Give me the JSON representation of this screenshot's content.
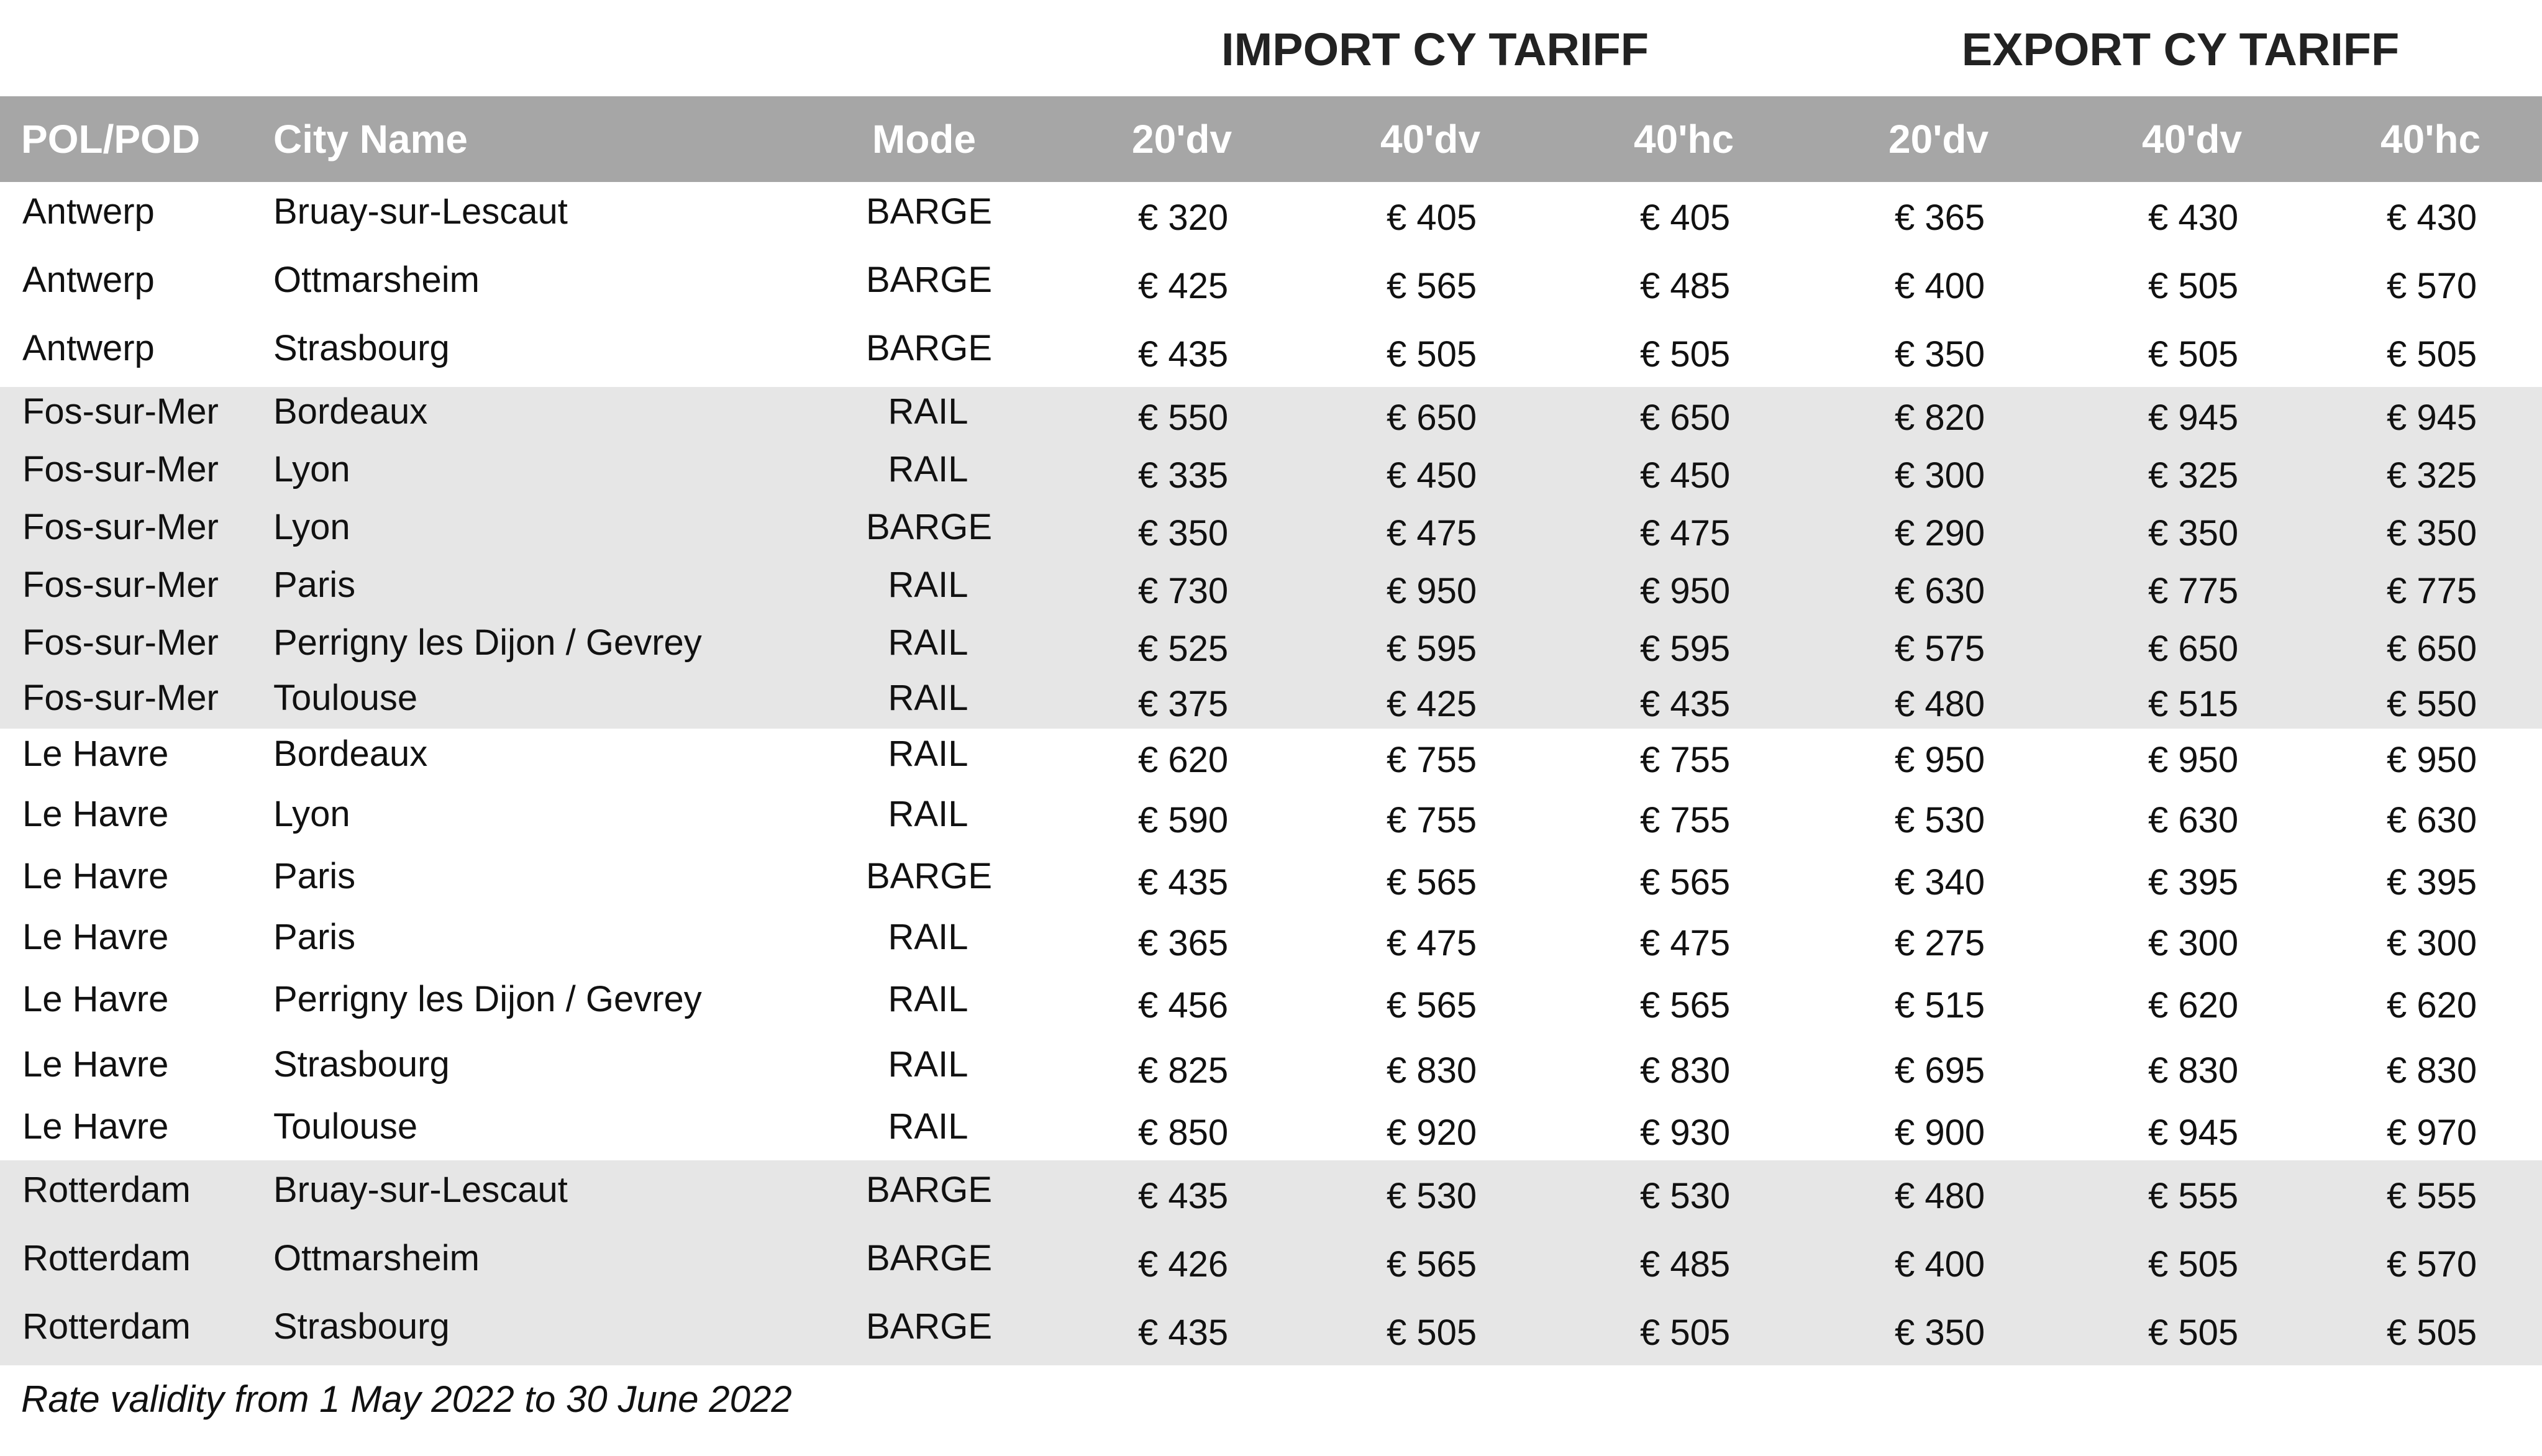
{
  "groups": {
    "import_title": "IMPORT CY TARIFF",
    "export_title": "EXPORT CY TARIFF"
  },
  "columns": {
    "pol_pod": "POL/POD",
    "city_name": "City Name",
    "mode": "Mode",
    "import_20dv": "20'dv",
    "import_40dv": "40'dv",
    "import_40hc": "40'hc",
    "export_20dv": "20'dv",
    "export_40dv": "40'dv",
    "export_40hc": "40'hc"
  },
  "colors": {
    "header_background": "#a6a6a6",
    "header_text": "#ffffff",
    "shaded_band": "#e6e6e6"
  },
  "rows": [
    {
      "pol": "Antwerp",
      "city": "Bruay-sur-Lescaut",
      "mode": "BARGE",
      "imp20": "€ 320",
      "imp40": "€ 405",
      "imp40hc": "€ 405",
      "exp20": "€ 365",
      "exp40": "€ 430",
      "exp40hc": "€ 430"
    },
    {
      "pol": "Antwerp",
      "city": "Ottmarsheim",
      "mode": "BARGE",
      "imp20": "€ 425",
      "imp40": "€ 565",
      "imp40hc": "€ 485",
      "exp20": "€ 400",
      "exp40": "€ 505",
      "exp40hc": "€ 570"
    },
    {
      "pol": "Antwerp",
      "city": "Strasbourg",
      "mode": "BARGE",
      "imp20": "€ 435",
      "imp40": "€ 505",
      "imp40hc": "€ 505",
      "exp20": "€ 350",
      "exp40": "€ 505",
      "exp40hc": "€ 505"
    },
    {
      "pol": "Fos-sur-Mer",
      "city": "Bordeaux",
      "mode": "RAIL",
      "imp20": "€ 550",
      "imp40": "€ 650",
      "imp40hc": "€ 650",
      "exp20": "€ 820",
      "exp40": "€ 945",
      "exp40hc": "€ 945"
    },
    {
      "pol": "Fos-sur-Mer",
      "city": "Lyon",
      "mode": "RAIL",
      "imp20": "€ 335",
      "imp40": "€ 450",
      "imp40hc": "€ 450",
      "exp20": "€ 300",
      "exp40": "€ 325",
      "exp40hc": "€ 325"
    },
    {
      "pol": "Fos-sur-Mer",
      "city": "Lyon",
      "mode": "BARGE",
      "imp20": "€ 350",
      "imp40": "€ 475",
      "imp40hc": "€ 475",
      "exp20": "€ 290",
      "exp40": "€ 350",
      "exp40hc": "€ 350"
    },
    {
      "pol": "Fos-sur-Mer",
      "city": "Paris",
      "mode": "RAIL",
      "imp20": "€ 730",
      "imp40": "€ 950",
      "imp40hc": "€ 950",
      "exp20": "€ 630",
      "exp40": "€ 775",
      "exp40hc": "€ 775"
    },
    {
      "pol": "Fos-sur-Mer",
      "city": "Perrigny les Dijon / Gevrey",
      "mode": "RAIL",
      "imp20": "€ 525",
      "imp40": "€ 595",
      "imp40hc": "€ 595",
      "exp20": "€ 575",
      "exp40": "€ 650",
      "exp40hc": "€ 650"
    },
    {
      "pol": "Fos-sur-Mer",
      "city": "Toulouse",
      "mode": "RAIL",
      "imp20": "€ 375",
      "imp40": "€ 425",
      "imp40hc": "€ 435",
      "exp20": "€ 480",
      "exp40": "€ 515",
      "exp40hc": "€ 550"
    },
    {
      "pol": "Le Havre",
      "city": "Bordeaux",
      "mode": "RAIL",
      "imp20": "€ 620",
      "imp40": "€ 755",
      "imp40hc": "€ 755",
      "exp20": "€ 950",
      "exp40": "€ 950",
      "exp40hc": "€ 950"
    },
    {
      "pol": "Le Havre",
      "city": "Lyon",
      "mode": "RAIL",
      "imp20": "€ 590",
      "imp40": "€ 755",
      "imp40hc": "€ 755",
      "exp20": "€ 530",
      "exp40": "€ 630",
      "exp40hc": "€ 630"
    },
    {
      "pol": "Le Havre",
      "city": "Paris",
      "mode": "BARGE",
      "imp20": "€ 435",
      "imp40": "€ 565",
      "imp40hc": "€ 565",
      "exp20": "€ 340",
      "exp40": "€ 395",
      "exp40hc": "€ 395"
    },
    {
      "pol": "Le Havre",
      "city": "Paris",
      "mode": "RAIL",
      "imp20": "€ 365",
      "imp40": "€ 475",
      "imp40hc": "€ 475",
      "exp20": "€ 275",
      "exp40": "€ 300",
      "exp40hc": "€ 300"
    },
    {
      "pol": "Le Havre",
      "city": "Perrigny les Dijon / Gevrey",
      "mode": "RAIL",
      "imp20": "€ 456",
      "imp40": "€ 565",
      "imp40hc": "€ 565",
      "exp20": "€ 515",
      "exp40": "€ 620",
      "exp40hc": "€ 620"
    },
    {
      "pol": "Le Havre",
      "city": "Strasbourg",
      "mode": "RAIL",
      "imp20": "€ 825",
      "imp40": "€ 830",
      "imp40hc": "€ 830",
      "exp20": "€ 695",
      "exp40": "€ 830",
      "exp40hc": "€ 830"
    },
    {
      "pol": "Le Havre",
      "city": "Toulouse",
      "mode": "RAIL",
      "imp20": "€ 850",
      "imp40": "€ 920",
      "imp40hc": "€ 930",
      "exp20": "€ 900",
      "exp40": "€ 945",
      "exp40hc": "€ 970"
    },
    {
      "pol": "Rotterdam",
      "city": "Bruay-sur-Lescaut",
      "mode": "BARGE",
      "imp20": "€ 435",
      "imp40": "€ 530",
      "imp40hc": "€ 530",
      "exp20": "€ 480",
      "exp40": "€ 555",
      "exp40hc": "€ 555"
    },
    {
      "pol": "Rotterdam",
      "city": "Ottmarsheim",
      "mode": "BARGE",
      "imp20": "€ 426",
      "imp40": "€ 565",
      "imp40hc": "€ 485",
      "exp20": "€ 400",
      "exp40": "€ 505",
      "exp40hc": "€ 570"
    },
    {
      "pol": "Rotterdam",
      "city": "Strasbourg",
      "mode": "BARGE",
      "imp20": "€ 435",
      "imp40": "€ 505",
      "imp40hc": "€ 505",
      "exp20": "€ 350",
      "exp40": "€ 505",
      "exp40hc": "€ 505"
    }
  ],
  "footer": {
    "note": "Rate validity from 1 May 2022 to 30 June 2022"
  }
}
